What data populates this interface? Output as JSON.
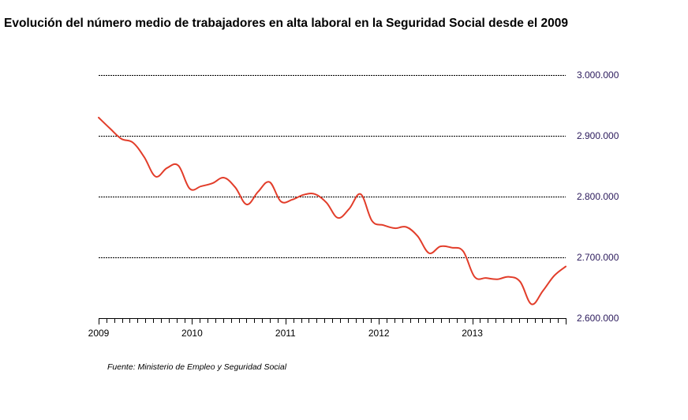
{
  "chart_data": {
    "type": "line",
    "title": "Evolución del número medio de trabajadores en alta laboral en la Seguridad Social desde el 2009",
    "source": "Fuente: Ministerio de Empleo y Seguridad Social",
    "xlabel": "",
    "ylabel": "",
    "x_ticks": [
      "2009",
      "2010",
      "2011",
      "2012",
      "2013"
    ],
    "y_ticks": [
      "3.000.000",
      "2.900.000",
      "2.800.000",
      "2.700.000",
      "2.600.000"
    ],
    "y_tick_values": [
      3000000,
      2900000,
      2800000,
      2700000,
      2600000
    ],
    "ylim": [
      2600000,
      3000000
    ],
    "x_months": 60,
    "grid": true,
    "colors": {
      "line": "#e23d2a",
      "grid": "#000000",
      "ytick_text": "#2b1a5c"
    },
    "series": [
      {
        "values": [
          2930000,
          2912000,
          2895000,
          2889000,
          2865000,
          2833000,
          2847000,
          2851000,
          2813000,
          2817000,
          2822000,
          2831000,
          2815000,
          2787000,
          2808000,
          2824000,
          2792000,
          2795000,
          2803000,
          2804000,
          2790000,
          2765000,
          2780000,
          2804000,
          2760000,
          2753000,
          2748000,
          2750000,
          2735000,
          2707000,
          2718000,
          2716000,
          2710000,
          2668000,
          2666000,
          2664000,
          2668000,
          2660000,
          2623000,
          2645000,
          2670000,
          2685000
        ]
      }
    ]
  }
}
